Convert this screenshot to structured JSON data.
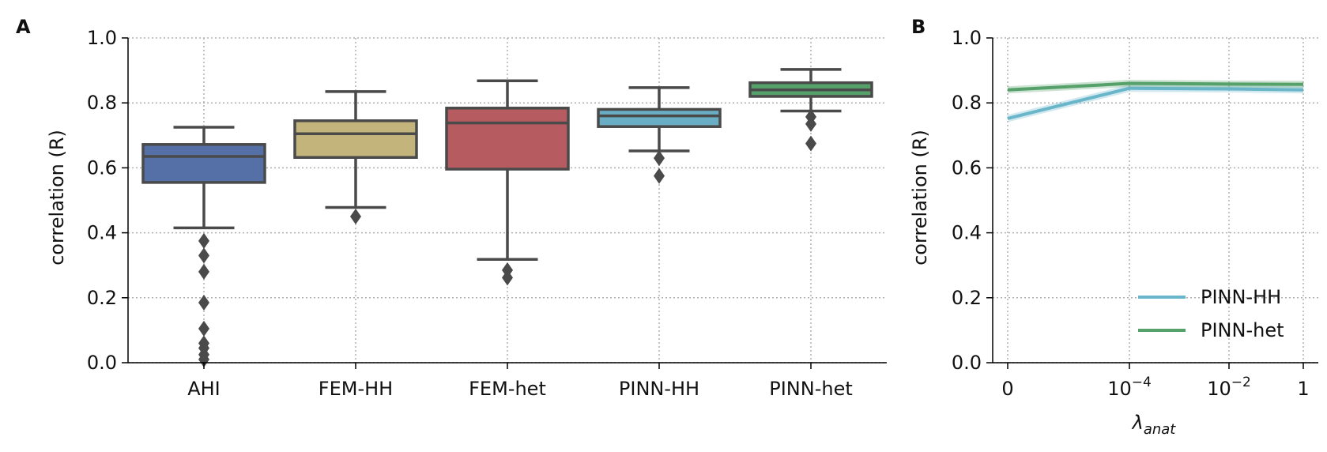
{
  "panel_a": {
    "letter": "A"
  },
  "panel_b": {
    "letter": "B"
  },
  "chart_data": [
    {
      "type": "box",
      "panel": "A",
      "title": "",
      "xlabel": "",
      "ylabel": "correlation (R)",
      "ylim": [
        0,
        1.0
      ],
      "yticks": [
        "0.0",
        "0.2",
        "0.4",
        "0.6",
        "0.8",
        "1.0"
      ],
      "grid": true,
      "categories": [
        "AHI",
        "FEM-HH",
        "FEM-het",
        "PINN-HH",
        "PINN-het"
      ],
      "colors": [
        "#5470a6",
        "#c3b47b",
        "#b65b5f",
        "#69aec4",
        "#56a06a"
      ],
      "boxes": [
        {
          "whisker_low": 0.415,
          "q1": 0.555,
          "median": 0.635,
          "q3": 0.672,
          "whisker_high": 0.725,
          "outliers": [
            0.375,
            0.33,
            0.28,
            0.185,
            0.105,
            0.06,
            0.045,
            0.025,
            0.01
          ]
        },
        {
          "whisker_low": 0.478,
          "q1": 0.632,
          "median": 0.705,
          "q3": 0.745,
          "whisker_high": 0.835,
          "outliers": [
            0.45
          ]
        },
        {
          "whisker_low": 0.318,
          "q1": 0.596,
          "median": 0.738,
          "q3": 0.784,
          "whisker_high": 0.868,
          "outliers": [
            0.285,
            0.262
          ]
        },
        {
          "whisker_low": 0.652,
          "q1": 0.727,
          "median": 0.76,
          "q3": 0.78,
          "whisker_high": 0.847,
          "outliers": [
            0.63,
            0.575
          ]
        },
        {
          "whisker_low": 0.775,
          "q1": 0.82,
          "median": 0.84,
          "q3": 0.862,
          "whisker_high": 0.903,
          "outliers": [
            0.757,
            0.735,
            0.675
          ]
        }
      ]
    },
    {
      "type": "line",
      "panel": "B",
      "title": "",
      "xlabel": "λ",
      "xlabel_sub": "anat",
      "ylabel": "correlation (R)",
      "ylim": [
        0,
        1.0
      ],
      "yticks": [
        "0.0",
        "0.2",
        "0.4",
        "0.6",
        "0.8",
        "1.0"
      ],
      "xticks": [
        {
          "base": "0",
          "exp": ""
        },
        {
          "base": "10",
          "exp": "−4"
        },
        {
          "base": "10",
          "exp": "−2"
        },
        {
          "base": "1",
          "exp": ""
        }
      ],
      "x": [
        0,
        0.0001,
        0.01,
        1
      ],
      "grid": true,
      "legend_position": "lower-right",
      "series": [
        {
          "name": "PINN-HH",
          "color": "#69b5c9",
          "values": [
            0.752,
            0.845,
            0.843,
            0.84
          ]
        },
        {
          "name": "PINN-het",
          "color": "#56a06a",
          "values": [
            0.84,
            0.86,
            0.858,
            0.857
          ]
        }
      ]
    }
  ]
}
